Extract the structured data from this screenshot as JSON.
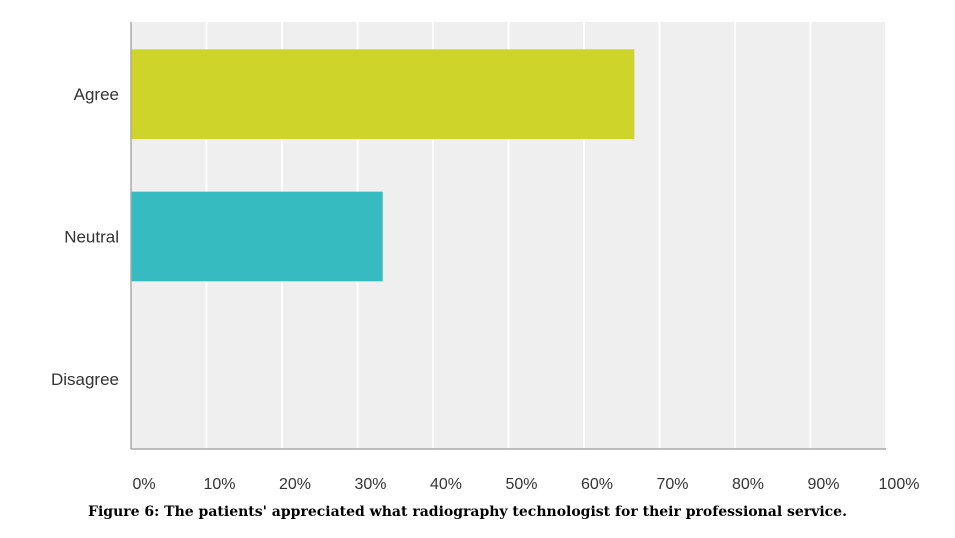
{
  "chart_data": {
    "type": "bar",
    "orientation": "horizontal",
    "categories": [
      "Agree",
      "Neutral",
      "Disagree"
    ],
    "values": [
      66.67,
      33.33,
      0
    ],
    "colors": [
      "#cfd42a",
      "#36bcc0",
      "#888888"
    ],
    "xlim": [
      0,
      100
    ],
    "x_ticks": [
      "0%",
      "10%",
      "20%",
      "30%",
      "40%",
      "50%",
      "60%",
      "70%",
      "80%",
      "90%",
      "100%"
    ],
    "grid": true,
    "plot_background": "#efefef",
    "grid_color": "#ffffff",
    "axis_color": "#aaaaaa",
    "caption": "Figure 6: The patients' appreciated what radiography technologist for their professional service."
  }
}
